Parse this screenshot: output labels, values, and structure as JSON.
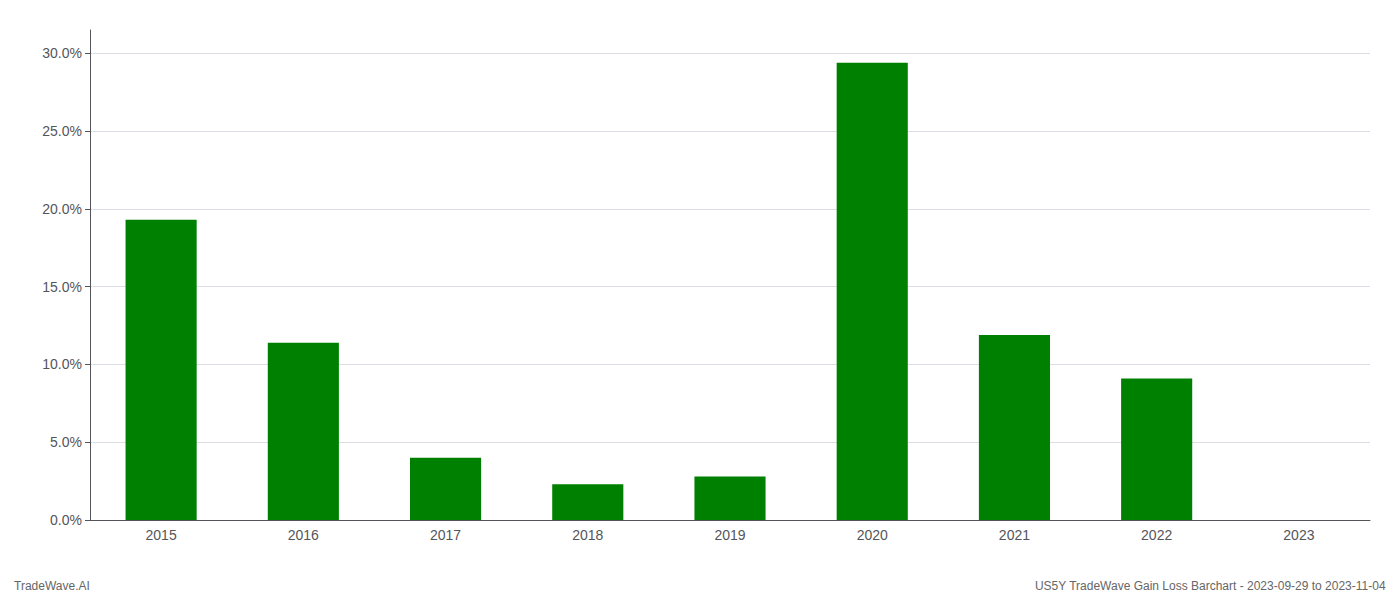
{
  "chart_data": {
    "type": "bar",
    "categories": [
      "2015",
      "2016",
      "2017",
      "2018",
      "2019",
      "2020",
      "2021",
      "2022",
      "2023"
    ],
    "values": [
      0.193,
      0.114,
      0.04,
      0.023,
      0.028,
      0.294,
      0.119,
      0.091,
      0.0
    ],
    "color": "#008000",
    "ylim": [
      0,
      0.315
    ],
    "yticks": [
      {
        "value": 0.0,
        "label": "0.0%"
      },
      {
        "value": 0.05,
        "label": "5.0%"
      },
      {
        "value": 0.1,
        "label": "10.0%"
      },
      {
        "value": 0.15,
        "label": "15.0%"
      },
      {
        "value": 0.2,
        "label": "20.0%"
      },
      {
        "value": 0.25,
        "label": "25.0%"
      },
      {
        "value": 0.3,
        "label": "30.0%"
      }
    ],
    "grid": true,
    "annotations": [
      "TradeWave.AI",
      "US5Y TradeWave Gain Loss Barchart - 2023-09-29 to 2023-11-04"
    ]
  }
}
